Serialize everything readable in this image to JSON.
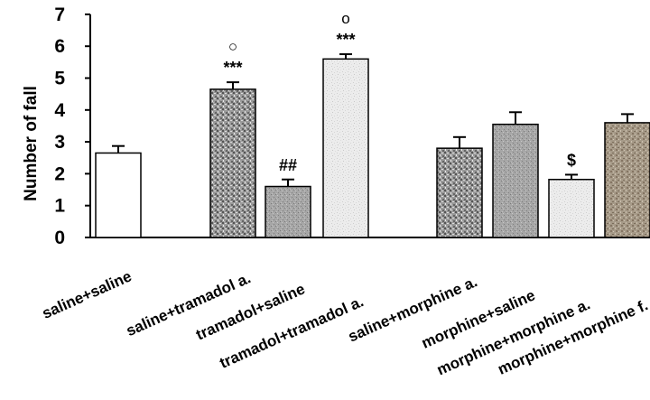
{
  "chart_data": {
    "type": "bar",
    "ylabel": "Number of fall",
    "xlabel": "",
    "title": "",
    "ylim": [
      0,
      7
    ],
    "yticks": [
      0,
      1,
      2,
      3,
      4,
      5,
      6,
      7
    ],
    "categories": [
      "saline+saline",
      "saline+tramadol a.",
      "tramadol+saline",
      "tramadol+tramadol a.",
      "saline+morphine a.",
      "morphine+saline",
      "morphine+morphine a.",
      "morphine+morphine f."
    ],
    "values": [
      2.65,
      4.65,
      1.6,
      5.6,
      2.8,
      3.55,
      1.82,
      3.6
    ],
    "errors": [
      0.22,
      0.22,
      0.22,
      0.15,
      0.35,
      0.38,
      0.15,
      0.27
    ],
    "annotations": [
      {
        "category": 1,
        "lines": [
          "○",
          "***"
        ]
      },
      {
        "category": 2,
        "lines": [
          "##"
        ]
      },
      {
        "category": 3,
        "lines": [
          "o",
          "***"
        ]
      },
      {
        "category": 6,
        "lines": [
          "$"
        ]
      }
    ],
    "bar_fills": [
      "white",
      "speckle-dark",
      "speckle-mid",
      "speckle-light",
      "speckle-dark",
      "speckle-mid",
      "speckle-light",
      "speckle-brown"
    ],
    "colors": {
      "axis": "#000000",
      "bar_outline": "#000000",
      "error_bar": "#000000"
    },
    "grid": false,
    "legend": "none"
  }
}
